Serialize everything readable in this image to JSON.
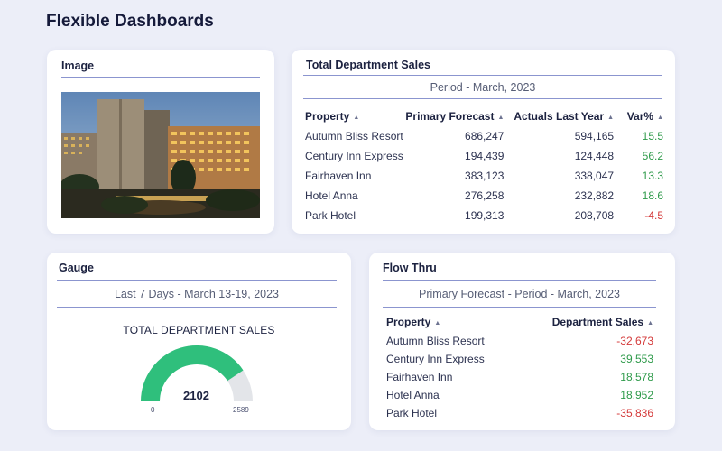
{
  "page": {
    "title": "Flexible Dashboards"
  },
  "image_card": {
    "title": "Image"
  },
  "sales_card": {
    "title": "Total Department Sales",
    "period": "Period - March, 2023",
    "columns": [
      "Property",
      "Primary Forecast",
      "Actuals Last Year",
      "Var%"
    ],
    "sort_icon": "sort-up-icon",
    "rows": [
      {
        "property": "Autumn Bliss Resort",
        "forecast": "686,247",
        "actuals": "594,165",
        "var": "15.5"
      },
      {
        "property": "Century Inn Express",
        "forecast": "194,439",
        "actuals": "124,448",
        "var": "56.2"
      },
      {
        "property": "Fairhaven Inn",
        "forecast": "383,123",
        "actuals": "338,047",
        "var": "13.3"
      },
      {
        "property": "Hotel Anna",
        "forecast": "276,258",
        "actuals": "232,882",
        "var": "18.6"
      },
      {
        "property": "Park Hotel",
        "forecast": "199,313",
        "actuals": "208,708",
        "var": "-4.5"
      }
    ]
  },
  "gauge_card": {
    "title": "Gauge",
    "period": "Last 7 Days - March 13-19, 2023",
    "heading": "TOTAL DEPARTMENT SALES",
    "value": 2102,
    "value_label": "2102",
    "min": 0,
    "max": 2589,
    "min_label": "0",
    "max_label": "2589",
    "fill_color": "#2fbf7c",
    "track_color": "#e3e5e9"
  },
  "flow_card": {
    "title": "Flow Thru",
    "period": "Primary Forecast - Period - March, 2023",
    "columns": [
      "Property",
      "Department Sales"
    ],
    "rows": [
      {
        "property": "Autumn Bliss Resort",
        "sales": "-32,673"
      },
      {
        "property": "Century Inn Express",
        "sales": "39,553"
      },
      {
        "property": "Fairhaven Inn",
        "sales": "18,578"
      },
      {
        "property": "Hotel Anna",
        "sales": "18,952"
      },
      {
        "property": "Park Hotel",
        "sales": "-35,836"
      }
    ]
  },
  "colors": {
    "positive": "#2e9a4a",
    "negative": "#d43a3a",
    "accent_rule": "#8b95cf"
  }
}
